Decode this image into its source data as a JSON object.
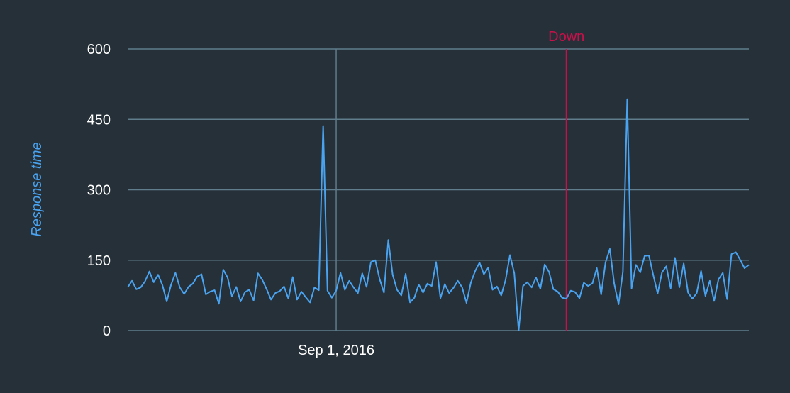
{
  "chart_data": {
    "type": "line",
    "ylabel": "Response time",
    "xlabel": "",
    "ylim": [
      0,
      600
    ],
    "yticks": [
      0,
      150,
      300,
      450,
      600
    ],
    "x_ticks": [
      {
        "index": 48,
        "label": "Sep 1, 2016"
      }
    ],
    "markers": [
      {
        "index": 101,
        "label": "Down"
      }
    ],
    "colors": {
      "background": "#263038",
      "grid": "#5f7d8c",
      "line": "#4aa3f0",
      "down_marker": "#c8104a",
      "tick_text": "#ffffff"
    },
    "grid": true,
    "series": [
      {
        "values": [
          92,
          106,
          88,
          92,
          105,
          126,
          103,
          119,
          97,
          62,
          98,
          123,
          92,
          78,
          93,
          100,
          115,
          120,
          77,
          83,
          86,
          57,
          130,
          113,
          73,
          93,
          62,
          82,
          87,
          64,
          122,
          108,
          88,
          66,
          80,
          84,
          94,
          68,
          114,
          66,
          83,
          71,
          60,
          92,
          86,
          436,
          85,
          70,
          85,
          123,
          87,
          106,
          92,
          80,
          122,
          93,
          146,
          150,
          110,
          81,
          193,
          119,
          87,
          75,
          121,
          60,
          70,
          98,
          81,
          100,
          95,
          146,
          69,
          99,
          80,
          91,
          106,
          92,
          59,
          102,
          127,
          145,
          120,
          134,
          87,
          94,
          75,
          108,
          161,
          122,
          0,
          95,
          103,
          92,
          113,
          89,
          141,
          125,
          88,
          83,
          70,
          68,
          85,
          82,
          69,
          102,
          95,
          101,
          133,
          77,
          145,
          174,
          100,
          56,
          125,
          493,
          90,
          140,
          124,
          159,
          160,
          118,
          79,
          124,
          137,
          90,
          155,
          92,
          143,
          81,
          68,
          80,
          127,
          74,
          106,
          63,
          109,
          123,
          67,
          163,
          167,
          151,
          133,
          140
        ]
      }
    ]
  }
}
